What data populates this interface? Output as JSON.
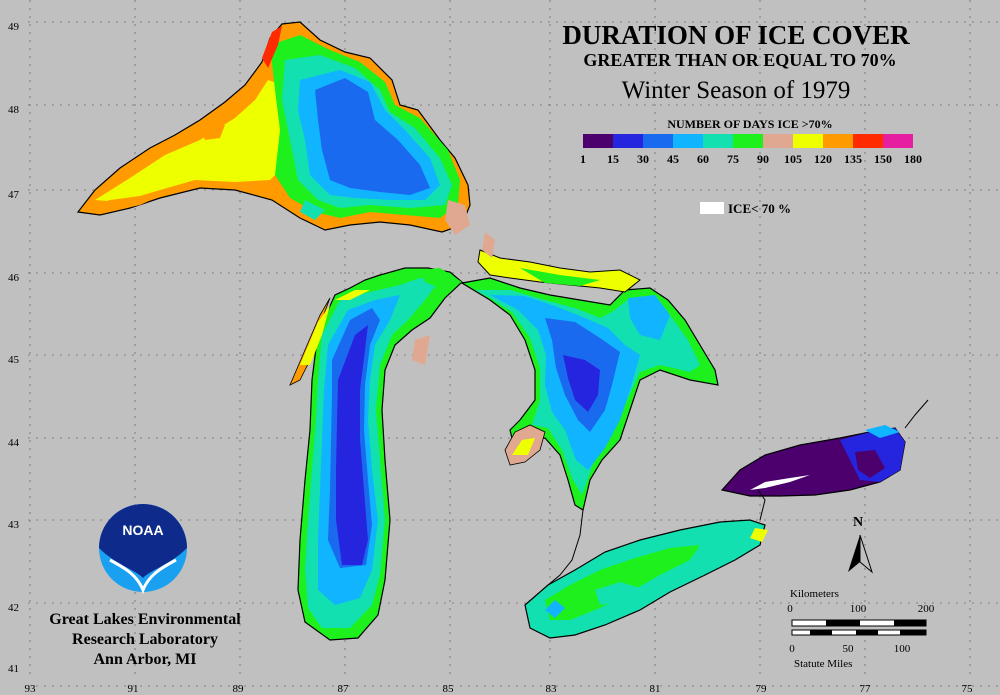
{
  "title": {
    "line1": "DURATION OF ICE COVER",
    "line2": "GREATER THAN OR EQUAL TO 70%",
    "line3": "Winter Season of 1979"
  },
  "legend": {
    "heading": "NUMBER OF DAYS ICE >70%",
    "ticks": [
      "1",
      "15",
      "30",
      "45",
      "60",
      "75",
      "90",
      "105",
      "120",
      "135",
      "150",
      "180"
    ],
    "colors": [
      "#4b006e",
      "#2525e0",
      "#1a6af0",
      "#10b4ff",
      "#12e0b0",
      "#1ef01e",
      "#e0a890",
      "#eeff00",
      "#ff9a00",
      "#ff2a00",
      "#e61ea0"
    ],
    "ice_below_label": "ICE< 70 %",
    "ice_below_color": "#ffffff"
  },
  "grid": {
    "lat_labels": [
      "49",
      "48",
      "47",
      "46",
      "45",
      "44",
      "43",
      "42",
      "41"
    ],
    "lon_labels": [
      "93",
      "91",
      "89",
      "87",
      "85",
      "83",
      "81",
      "79",
      "77",
      "75"
    ]
  },
  "north_arrow": {
    "label": "N"
  },
  "scale": {
    "top_label": "Kilometers",
    "km_ticks": [
      "0",
      "100",
      "200"
    ],
    "mile_ticks": [
      "0",
      "50",
      "100"
    ],
    "bottom_label": "Statute Miles"
  },
  "logo": {
    "text": "NOAA"
  },
  "org": {
    "line1": "Great Lakes Environmental",
    "line2": "Research Laboratory",
    "line3": "Ann Arbor, MI"
  },
  "colors": {
    "background": "#c0c0c0",
    "shoreline": "#000000",
    "grid": "#6a6a6a"
  }
}
